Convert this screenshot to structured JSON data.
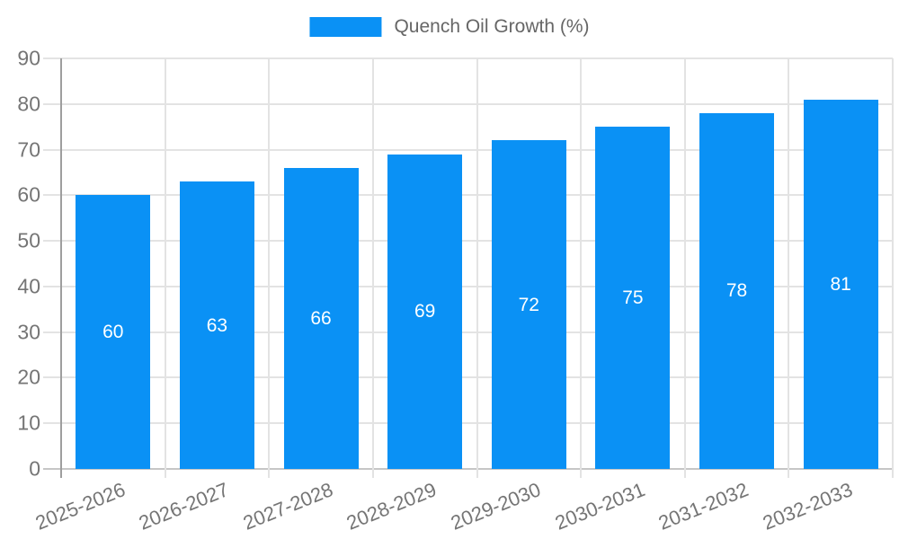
{
  "chart_data": {
    "type": "bar",
    "title": "",
    "categories": [
      "2025-2026",
      "2026-2027",
      "2027-2028",
      "2028-2029",
      "2029-2030",
      "2030-2031",
      "2031-2032",
      "2032-2033"
    ],
    "series": [
      {
        "name": "Quench Oil Growth (%)",
        "values": [
          60,
          63,
          66,
          69,
          72,
          75,
          78,
          81
        ],
        "color": "#0a91f5"
      }
    ],
    "value_labels": [
      "60",
      "63",
      "66",
      "69",
      "72",
      "75",
      "78",
      "81"
    ],
    "value_label_color": "#ffffff",
    "xlabel": "",
    "ylabel": "",
    "ylim": [
      0,
      90
    ],
    "y_ticks": [
      0,
      10,
      20,
      30,
      40,
      50,
      60,
      70,
      80,
      90
    ],
    "grid": true,
    "legend_position": "top"
  },
  "colors": {
    "bar": "#0a91f5",
    "gridline": "#e3e3e3",
    "zero_line": "#c6c6c6",
    "axis_line": "#9e9e9e",
    "tick_label": "#757575",
    "legend_text": "#666666",
    "value_label": "#ffffff",
    "background": "#ffffff"
  }
}
